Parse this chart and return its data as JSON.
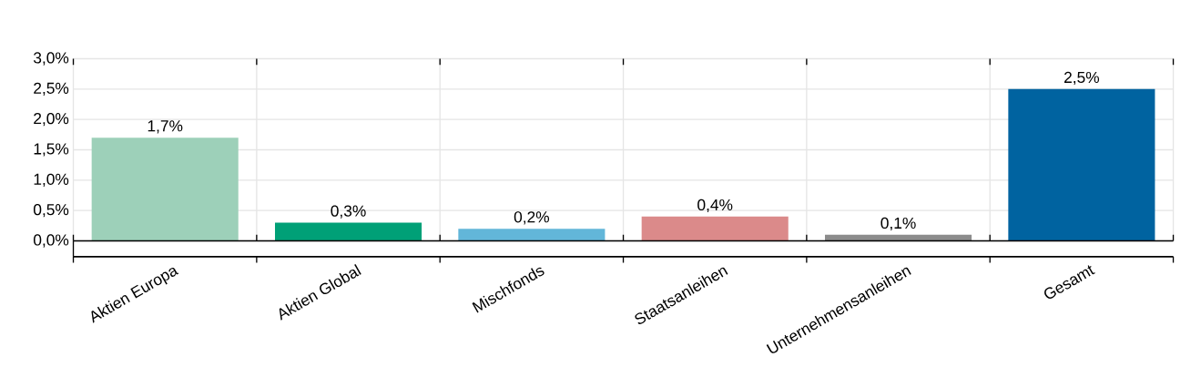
{
  "chart_data": {
    "type": "bar",
    "categories": [
      "Aktien Europa",
      "Aktien Global",
      "Mischfonds",
      "Staatsanleihen",
      "Unternehmensanleihen",
      "Gesamt"
    ],
    "values": [
      1.7,
      0.3,
      0.2,
      0.4,
      0.1,
      2.5
    ],
    "value_labels": [
      "1,7%",
      "0,3%",
      "0,2%",
      "0,4%",
      "0,1%",
      "2,5%"
    ],
    "colors": [
      "#9dd0b9",
      "#00a077",
      "#62b6d9",
      "#db8a8a",
      "#8c8c8c",
      "#0063a0"
    ],
    "ylim": [
      0,
      3
    ],
    "yticks": [
      {
        "value": 0,
        "label": "0,0%"
      },
      {
        "value": 0.5,
        "label": "0,5%"
      },
      {
        "value": 1,
        "label": "1,0%"
      },
      {
        "value": 1.5,
        "label": "1,5%"
      },
      {
        "value": 2,
        "label": "2,0%"
      },
      {
        "value": 2.5,
        "label": "2,5%"
      },
      {
        "value": 3,
        "label": "3,0%"
      }
    ],
    "grid": true
  }
}
